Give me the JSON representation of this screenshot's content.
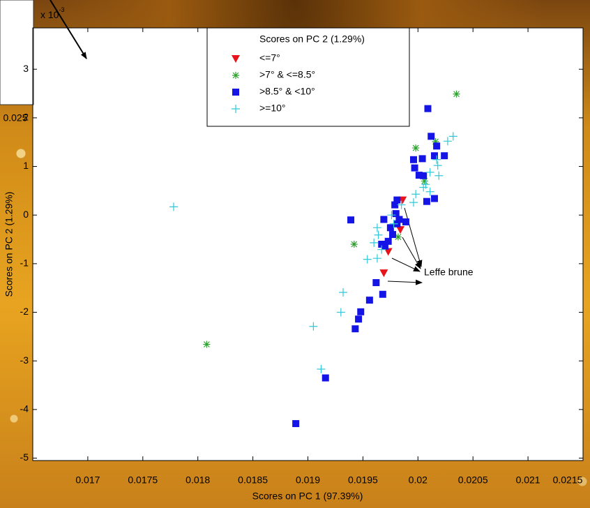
{
  "chart_data": {
    "type": "scatter",
    "x_label": "Scores on PC 1 (97.39%)",
    "y_label": "Scores on PC 2 (1.29%)",
    "y_exponent": {
      "base": "x 10",
      "power": "-3"
    },
    "legend_title": "Scores on PC 2 (1.29%)",
    "legend": "top-center",
    "annotation": "Leffe brune",
    "background_label": "0.025",
    "xlim": [
      0.0165,
      0.0215
    ],
    "ylim": [
      -5.05,
      3.85
    ],
    "xticks": [
      0.017,
      0.0175,
      0.018,
      0.0185,
      0.019,
      0.0195,
      0.02,
      0.0205,
      0.021,
      0.0215
    ],
    "yticks": [
      -5,
      -4,
      -3,
      -2,
      -1,
      0,
      1,
      2,
      3
    ],
    "series": [
      {
        "name": "<=7°",
        "color": "#e8121a",
        "marker": "triangle-down",
        "x": [
          0.01986,
          0.01984,
          0.01973,
          0.01969
        ],
        "values": [
          0.31,
          -0.3,
          -0.75,
          -1.19
        ]
      },
      {
        "name": ">7° & <=8.5°",
        "color": "#2ca02c",
        "marker": "asterisk",
        "x": [
          0.02035,
          0.02016,
          0.01998,
          0.02006,
          0.01942,
          0.01982,
          0.01808
        ],
        "values": [
          2.49,
          1.51,
          1.38,
          0.7,
          -0.6,
          -0.45,
          -2.66
        ]
      },
      {
        "name": ">8.5° & <10°",
        "color": "#1414e6",
        "marker": "square",
        "x": [
          0.02009,
          0.02012,
          0.02017,
          0.02015,
          0.02024,
          0.01996,
          0.02004,
          0.01997,
          0.02005,
          0.02001,
          0.02015,
          0.02008,
          0.01981,
          0.01979,
          0.0198,
          0.01983,
          0.01989,
          0.01981,
          0.01969,
          0.01939,
          0.01975,
          0.01977,
          0.01973,
          0.01967,
          0.0197,
          0.01962,
          0.01968,
          0.01956,
          0.01948,
          0.01946,
          0.01943,
          0.01916,
          0.01889
        ],
        "values": [
          2.19,
          1.62,
          1.42,
          1.22,
          1.22,
          1.14,
          1.16,
          0.97,
          0.81,
          0.82,
          0.34,
          0.28,
          0.31,
          0.21,
          0.03,
          -0.09,
          -0.14,
          -0.18,
          -0.09,
          -0.1,
          -0.26,
          -0.4,
          -0.54,
          -0.6,
          -0.64,
          -1.39,
          -1.63,
          -1.75,
          -1.99,
          -2.14,
          -2.34,
          -3.35,
          -4.29
        ]
      },
      {
        "name": ">=10°",
        "color": "#30c8d8",
        "marker": "plus",
        "x": [
          0.02032,
          0.02027,
          0.02017,
          0.02018,
          0.02011,
          0.02019,
          0.02007,
          0.02005,
          0.02011,
          0.01998,
          0.01996,
          0.01985,
          0.01976,
          0.01978,
          0.01963,
          0.01964,
          0.0196,
          0.01967,
          0.01963,
          0.01954,
          0.01932,
          0.0193,
          0.01905,
          0.01912,
          0.01778
        ],
        "values": [
          1.62,
          1.52,
          1.14,
          1.02,
          0.88,
          0.81,
          0.63,
          0.57,
          0.48,
          0.43,
          0.26,
          0.21,
          0.0,
          -0.18,
          -0.26,
          -0.41,
          -0.57,
          -0.71,
          -0.89,
          -0.91,
          -1.59,
          -2.0,
          -2.29,
          -3.17,
          0.17
        ]
      }
    ]
  }
}
